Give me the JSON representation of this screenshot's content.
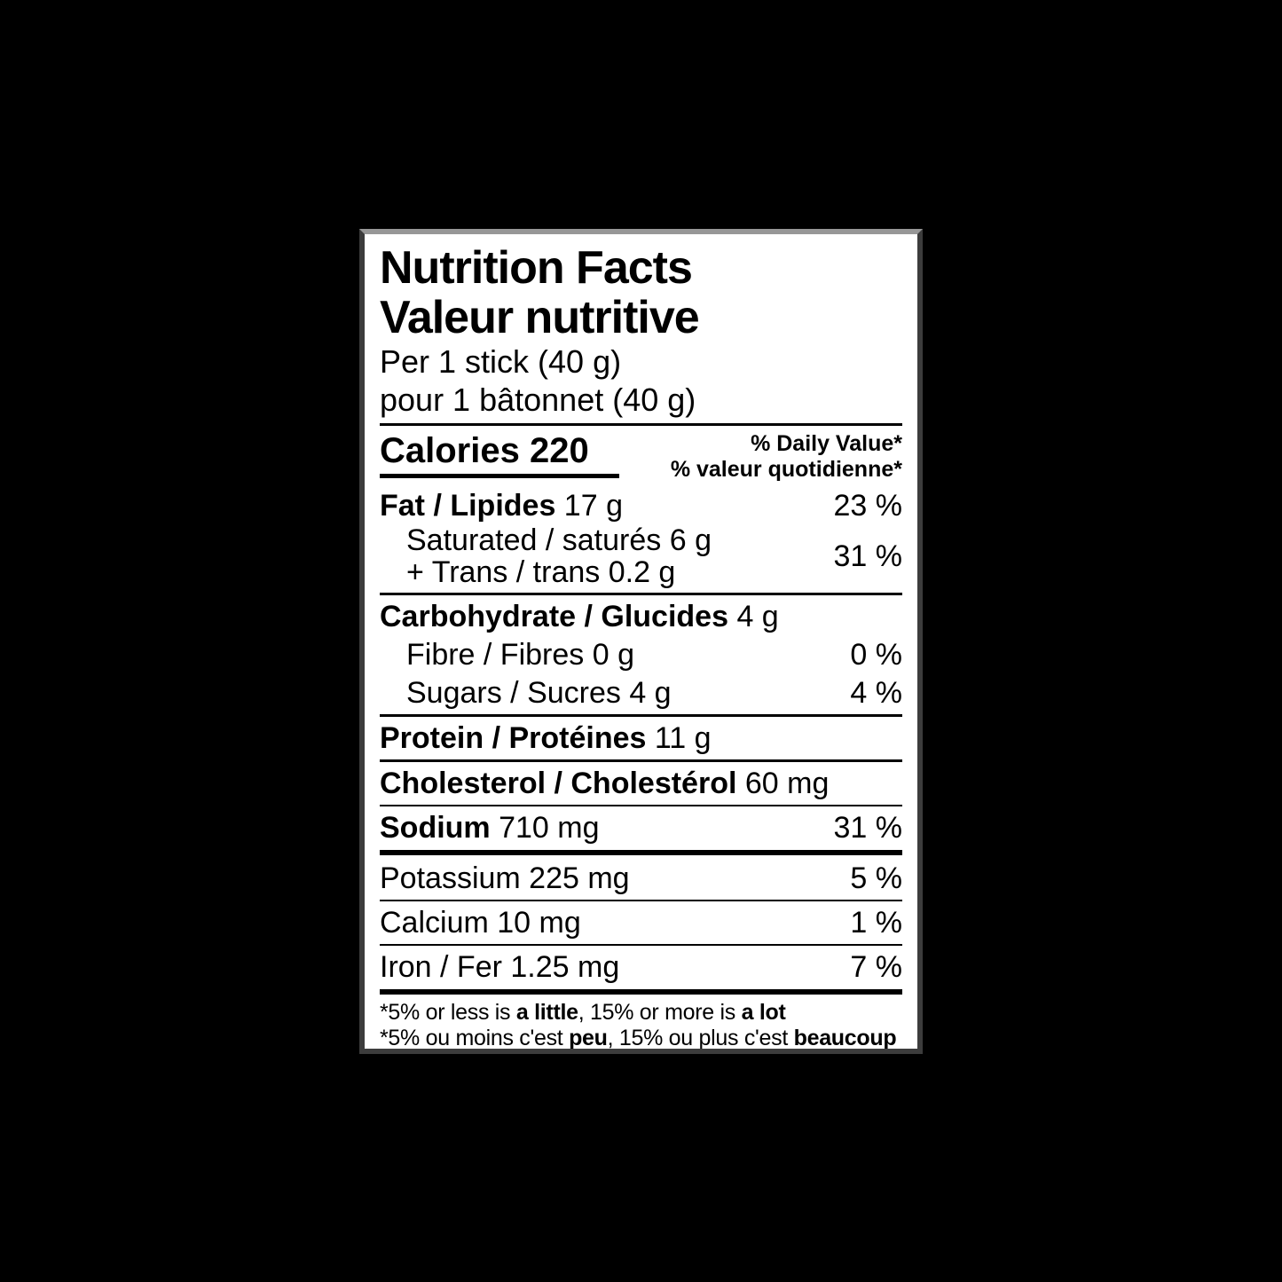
{
  "page": {
    "background": "#000000"
  },
  "label": {
    "background": "#ffffff",
    "border_color": "#3c3c3c",
    "text_color": "#000000",
    "title_en": "Nutrition Facts",
    "title_fr": "Valeur nutritive",
    "serving_en": "Per 1 stick (40 g)",
    "serving_fr": "pour 1 bâtonnet (40 g)",
    "calories": "Calories 220",
    "daily_value_en": "% Daily Value*",
    "daily_value_fr": "% valeur quotidienne*",
    "rows": {
      "fat": {
        "name": "Fat / Lipides",
        "amount": " 17 g",
        "dv": "23 %"
      },
      "saturated": {
        "name": "Saturated / saturés 6 g"
      },
      "trans": {
        "name": "+ Trans / trans 0.2 g",
        "dv": "31 %"
      },
      "carbohydrate": {
        "name": "Carbohydrate / Glucides",
        "amount": " 4 g"
      },
      "fibre": {
        "name": "Fibre / Fibres 0 g",
        "dv": "0 %"
      },
      "sugars": {
        "name": "Sugars / Sucres 4 g",
        "dv": "4 %"
      },
      "protein": {
        "name": "Protein / Protéines",
        "amount": " 11 g"
      },
      "cholesterol": {
        "name": "Cholesterol / Cholestérol",
        "amount": " 60 mg"
      },
      "sodium": {
        "name": "Sodium",
        "amount": " 710 mg",
        "dv": "31 %"
      },
      "potassium": {
        "name": "Potassium 225 mg",
        "dv": "5 %"
      },
      "calcium": {
        "name": "Calcium 10 mg",
        "dv": "1 %"
      },
      "iron": {
        "name": "Iron / Fer 1.25 mg",
        "dv": "7 %"
      }
    },
    "footnote_en": {
      "p1": "*5% or less is ",
      "b1": "a little",
      "p2": ", 15% or more is ",
      "b2": "a lot"
    },
    "footnote_fr": {
      "p1": "*5% ou moins c'est ",
      "b1": "peu",
      "p2": ", 15% ou plus c'est ",
      "b2": "beaucoup"
    }
  }
}
